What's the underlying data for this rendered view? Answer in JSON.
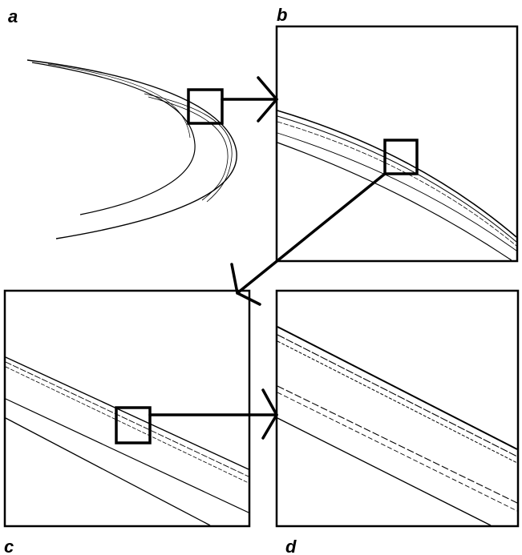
{
  "figure": {
    "panels": [
      {
        "id": "a",
        "label": "a"
      },
      {
        "id": "b",
        "label": "b"
      },
      {
        "id": "c",
        "label": "c"
      },
      {
        "id": "d",
        "label": "d"
      }
    ],
    "colors": {
      "ink": "#000000",
      "background": "#ffffff"
    }
  }
}
